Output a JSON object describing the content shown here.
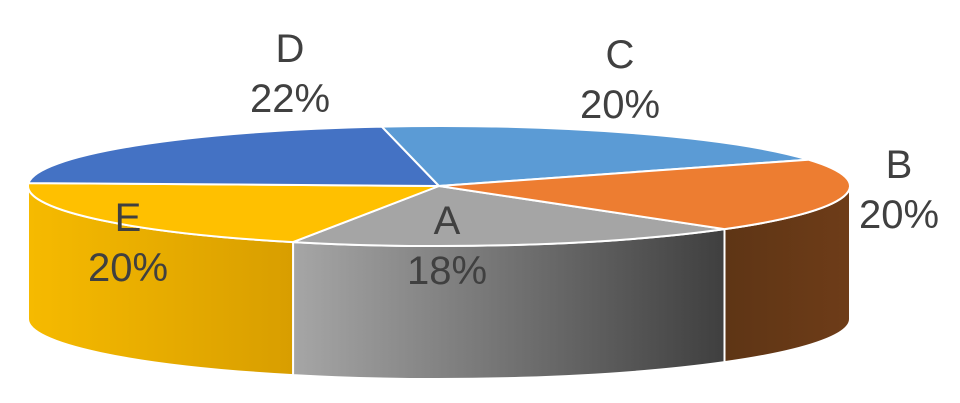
{
  "chart_data": {
    "type": "pie",
    "style": "3d",
    "title": "",
    "slices": [
      {
        "label": "A",
        "value": 18,
        "value_label": "18%",
        "color": "#A5A5A5"
      },
      {
        "label": "B",
        "value": 20,
        "value_label": "20%",
        "color": "#ED7D31"
      },
      {
        "label": "C",
        "value": 20,
        "value_label": "20%",
        "color": "#5B9BD5"
      },
      {
        "label": "D",
        "value": 22,
        "value_label": "22%",
        "color": "#4472C4"
      },
      {
        "label": "E",
        "value": 20,
        "value_label": "20%",
        "color": "#FFC000"
      }
    ],
    "legend": "none",
    "data_labels": "category and percentage"
  }
}
